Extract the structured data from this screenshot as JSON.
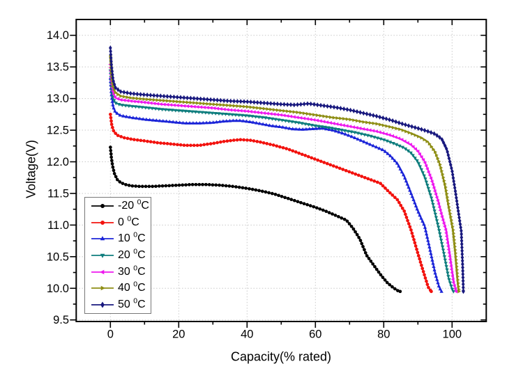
{
  "figure": {
    "background": "#ffffff"
  },
  "chart_data": {
    "type": "line",
    "title": "",
    "xlabel": "Capacity(% rated)",
    "ylabel": "Voltage(V)",
    "xlim": [
      -10,
      110
    ],
    "ylim": [
      9.475,
      14.25
    ],
    "grid": true,
    "grid_color": "#c8c8c8",
    "axis_color": "#000000",
    "legend_position": "inside-bottom-left",
    "x_ticks": [
      {
        "v": 0,
        "label": "0"
      },
      {
        "v": 20,
        "label": "20"
      },
      {
        "v": 40,
        "label": "40"
      },
      {
        "v": 60,
        "label": "60"
      },
      {
        "v": 80,
        "label": "80"
      },
      {
        "v": 100,
        "label": "100"
      }
    ],
    "x_minor_ticks": [
      10,
      30,
      50,
      70,
      90
    ],
    "y_ticks": [
      {
        "v": 9.5,
        "label": "9.5"
      },
      {
        "v": 10.0,
        "label": "10.0"
      },
      {
        "v": 10.5,
        "label": "10.5"
      },
      {
        "v": 11.0,
        "label": "11.0"
      },
      {
        "v": 11.5,
        "label": "11.5"
      },
      {
        "v": 12.0,
        "label": "12.0"
      },
      {
        "v": 12.5,
        "label": "12.5"
      },
      {
        "v": 13.0,
        "label": "13.0"
      },
      {
        "v": 13.5,
        "label": "13.5"
      },
      {
        "v": 14.0,
        "label": "14.0"
      }
    ],
    "y_minor_ticks": [
      9.75,
      10.25,
      10.75,
      11.25,
      11.75,
      12.25,
      12.75,
      13.25,
      13.75
    ],
    "series": [
      {
        "label": "-20",
        "degree": "0",
        "unit": "C",
        "color": "#000000",
        "marker": "circle",
        "points": [
          [
            0,
            12.23
          ],
          [
            0.3,
            12.06
          ],
          [
            0.7,
            11.92
          ],
          [
            1.2,
            11.81
          ],
          [
            2,
            11.72
          ],
          [
            3,
            11.67
          ],
          [
            4.5,
            11.64
          ],
          [
            6,
            11.62
          ],
          [
            9,
            11.61
          ],
          [
            12,
            11.61
          ],
          [
            16,
            11.62
          ],
          [
            20,
            11.63
          ],
          [
            24,
            11.64
          ],
          [
            28,
            11.64
          ],
          [
            32,
            11.63
          ],
          [
            36,
            11.61
          ],
          [
            40,
            11.58
          ],
          [
            44,
            11.54
          ],
          [
            48,
            11.49
          ],
          [
            52,
            11.42
          ],
          [
            56,
            11.35
          ],
          [
            60,
            11.28
          ],
          [
            63,
            11.22
          ],
          [
            66,
            11.15
          ],
          [
            69,
            11.08
          ],
          [
            71,
            10.95
          ],
          [
            73,
            10.78
          ],
          [
            75,
            10.52
          ],
          [
            77,
            10.37
          ],
          [
            79,
            10.22
          ],
          [
            81,
            10.09
          ],
          [
            83,
            10.0
          ],
          [
            84.2,
            9.96
          ],
          [
            84.8,
            9.95
          ]
        ]
      },
      {
        "label": "0",
        "degree": "0",
        "unit": "C",
        "color": "#f2120e",
        "marker": "circle",
        "points": [
          [
            0,
            12.75
          ],
          [
            0.4,
            12.58
          ],
          [
            1,
            12.48
          ],
          [
            2,
            12.42
          ],
          [
            4,
            12.38
          ],
          [
            7,
            12.35
          ],
          [
            10,
            12.33
          ],
          [
            14,
            12.3
          ],
          [
            18,
            12.28
          ],
          [
            22,
            12.26
          ],
          [
            26,
            12.26
          ],
          [
            30,
            12.29
          ],
          [
            33,
            12.32
          ],
          [
            36,
            12.34
          ],
          [
            38,
            12.35
          ],
          [
            41,
            12.34
          ],
          [
            44,
            12.31
          ],
          [
            48,
            12.26
          ],
          [
            52,
            12.2
          ],
          [
            56,
            12.12
          ],
          [
            60,
            12.04
          ],
          [
            64,
            11.96
          ],
          [
            68,
            11.88
          ],
          [
            72,
            11.8
          ],
          [
            76,
            11.72
          ],
          [
            79,
            11.66
          ],
          [
            82,
            11.5
          ],
          [
            84,
            11.4
          ],
          [
            86,
            11.22
          ],
          [
            88,
            10.92
          ],
          [
            90,
            10.55
          ],
          [
            91.5,
            10.28
          ],
          [
            93,
            10.02
          ],
          [
            93.9,
            9.95
          ]
        ]
      },
      {
        "label": "10",
        "degree": "0",
        "unit": "C",
        "color": "#1b24d8",
        "marker": "triangle-up",
        "points": [
          [
            0,
            13.32
          ],
          [
            0.3,
            13.07
          ],
          [
            0.8,
            12.87
          ],
          [
            1.5,
            12.78
          ],
          [
            3,
            12.73
          ],
          [
            6,
            12.7
          ],
          [
            10,
            12.67
          ],
          [
            14,
            12.65
          ],
          [
            18,
            12.63
          ],
          [
            22,
            12.61
          ],
          [
            26,
            12.61
          ],
          [
            30,
            12.62
          ],
          [
            33,
            12.64
          ],
          [
            36,
            12.65
          ],
          [
            38,
            12.65
          ],
          [
            41,
            12.63
          ],
          [
            44,
            12.6
          ],
          [
            47,
            12.57
          ],
          [
            50,
            12.55
          ],
          [
            53,
            12.52
          ],
          [
            56,
            12.51
          ],
          [
            59,
            12.52
          ],
          [
            62,
            12.53
          ],
          [
            65,
            12.5
          ],
          [
            68,
            12.45
          ],
          [
            71,
            12.39
          ],
          [
            74,
            12.32
          ],
          [
            77,
            12.25
          ],
          [
            80,
            12.18
          ],
          [
            82,
            12.09
          ],
          [
            84,
            11.97
          ],
          [
            86,
            11.77
          ],
          [
            88,
            11.5
          ],
          [
            90,
            11.22
          ],
          [
            92,
            10.98
          ],
          [
            93.5,
            10.62
          ],
          [
            95,
            10.25
          ],
          [
            96.2,
            10.02
          ],
          [
            96.9,
            9.95
          ]
        ]
      },
      {
        "label": "20",
        "degree": "0",
        "unit": "C",
        "color": "#0e7d7d",
        "marker": "triangle-down",
        "points": [
          [
            0,
            13.44
          ],
          [
            0.3,
            13.18
          ],
          [
            0.8,
            13.0
          ],
          [
            1.5,
            12.93
          ],
          [
            3,
            12.9
          ],
          [
            6,
            12.88
          ],
          [
            10,
            12.86
          ],
          [
            15,
            12.83
          ],
          [
            20,
            12.81
          ],
          [
            25,
            12.79
          ],
          [
            30,
            12.77
          ],
          [
            35,
            12.75
          ],
          [
            40,
            12.73
          ],
          [
            45,
            12.7
          ],
          [
            50,
            12.66
          ],
          [
            55,
            12.62
          ],
          [
            60,
            12.57
          ],
          [
            64,
            12.54
          ],
          [
            68,
            12.5
          ],
          [
            72,
            12.46
          ],
          [
            76,
            12.41
          ],
          [
            80,
            12.35
          ],
          [
            83,
            12.29
          ],
          [
            86,
            12.22
          ],
          [
            88,
            12.14
          ],
          [
            90,
            12.0
          ],
          [
            92,
            11.76
          ],
          [
            94,
            11.42
          ],
          [
            96,
            10.97
          ],
          [
            97.5,
            10.58
          ],
          [
            99,
            10.16
          ],
          [
            100,
            9.99
          ],
          [
            100.4,
            9.95
          ]
        ]
      },
      {
        "label": "30",
        "degree": "0",
        "unit": "C",
        "color": "#ee18ee",
        "marker": "triangle-left",
        "points": [
          [
            0,
            13.54
          ],
          [
            0.3,
            13.28
          ],
          [
            0.8,
            13.09
          ],
          [
            1.5,
            13.01
          ],
          [
            3,
            12.98
          ],
          [
            6,
            12.96
          ],
          [
            10,
            12.94
          ],
          [
            15,
            12.91
          ],
          [
            20,
            12.89
          ],
          [
            25,
            12.87
          ],
          [
            30,
            12.85
          ],
          [
            35,
            12.82
          ],
          [
            40,
            12.8
          ],
          [
            45,
            12.77
          ],
          [
            50,
            12.74
          ],
          [
            55,
            12.7
          ],
          [
            60,
            12.66
          ],
          [
            65,
            12.61
          ],
          [
            70,
            12.56
          ],
          [
            74,
            12.52
          ],
          [
            78,
            12.48
          ],
          [
            82,
            12.42
          ],
          [
            85,
            12.36
          ],
          [
            88,
            12.27
          ],
          [
            90,
            12.17
          ],
          [
            92,
            12.0
          ],
          [
            94,
            11.72
          ],
          [
            96,
            11.36
          ],
          [
            97,
            11.15
          ],
          [
            98.2,
            10.92
          ],
          [
            99.3,
            10.52
          ],
          [
            100.4,
            10.1
          ],
          [
            101.2,
            9.95
          ]
        ]
      },
      {
        "label": "40",
        "degree": "0",
        "unit": "C",
        "color": "#8e8e14",
        "marker": "triangle-right",
        "points": [
          [
            0,
            13.67
          ],
          [
            0.3,
            13.41
          ],
          [
            0.8,
            13.19
          ],
          [
            1.5,
            13.09
          ],
          [
            3,
            13.04
          ],
          [
            6,
            13.01
          ],
          [
            10,
            12.99
          ],
          [
            15,
            12.97
          ],
          [
            20,
            12.95
          ],
          [
            25,
            12.93
          ],
          [
            30,
            12.91
          ],
          [
            35,
            12.89
          ],
          [
            40,
            12.87
          ],
          [
            45,
            12.84
          ],
          [
            50,
            12.81
          ],
          [
            55,
            12.78
          ],
          [
            60,
            12.74
          ],
          [
            65,
            12.7
          ],
          [
            70,
            12.67
          ],
          [
            74,
            12.63
          ],
          [
            78,
            12.6
          ],
          [
            82,
            12.55
          ],
          [
            85,
            12.51
          ],
          [
            88,
            12.45
          ],
          [
            91,
            12.38
          ],
          [
            93,
            12.31
          ],
          [
            95,
            12.16
          ],
          [
            96.5,
            11.95
          ],
          [
            98,
            11.62
          ],
          [
            99,
            11.3
          ],
          [
            100.3,
            10.92
          ],
          [
            101,
            10.55
          ],
          [
            101.7,
            10.1
          ],
          [
            102,
            9.95
          ]
        ]
      },
      {
        "label": "50",
        "degree": "0",
        "unit": "C",
        "color": "#18187e",
        "marker": "diamond",
        "points": [
          [
            0,
            13.8
          ],
          [
            0.3,
            13.53
          ],
          [
            0.8,
            13.29
          ],
          [
            1.5,
            13.17
          ],
          [
            3,
            13.11
          ],
          [
            6,
            13.08
          ],
          [
            10,
            13.06
          ],
          [
            15,
            13.04
          ],
          [
            20,
            13.02
          ],
          [
            25,
            13.0
          ],
          [
            30,
            12.98
          ],
          [
            35,
            12.96
          ],
          [
            40,
            12.95
          ],
          [
            45,
            12.93
          ],
          [
            50,
            12.91
          ],
          [
            54,
            12.9
          ],
          [
            58,
            12.92
          ],
          [
            62,
            12.89
          ],
          [
            66,
            12.86
          ],
          [
            70,
            12.82
          ],
          [
            74,
            12.77
          ],
          [
            78,
            12.72
          ],
          [
            82,
            12.66
          ],
          [
            86,
            12.59
          ],
          [
            90,
            12.53
          ],
          [
            93,
            12.48
          ],
          [
            95,
            12.44
          ],
          [
            97,
            12.36
          ],
          [
            98.5,
            12.19
          ],
          [
            100,
            11.86
          ],
          [
            101,
            11.52
          ],
          [
            102,
            11.15
          ],
          [
            102.7,
            10.9
          ],
          [
            103.1,
            10.35
          ],
          [
            103.3,
            9.95
          ]
        ]
      }
    ]
  }
}
